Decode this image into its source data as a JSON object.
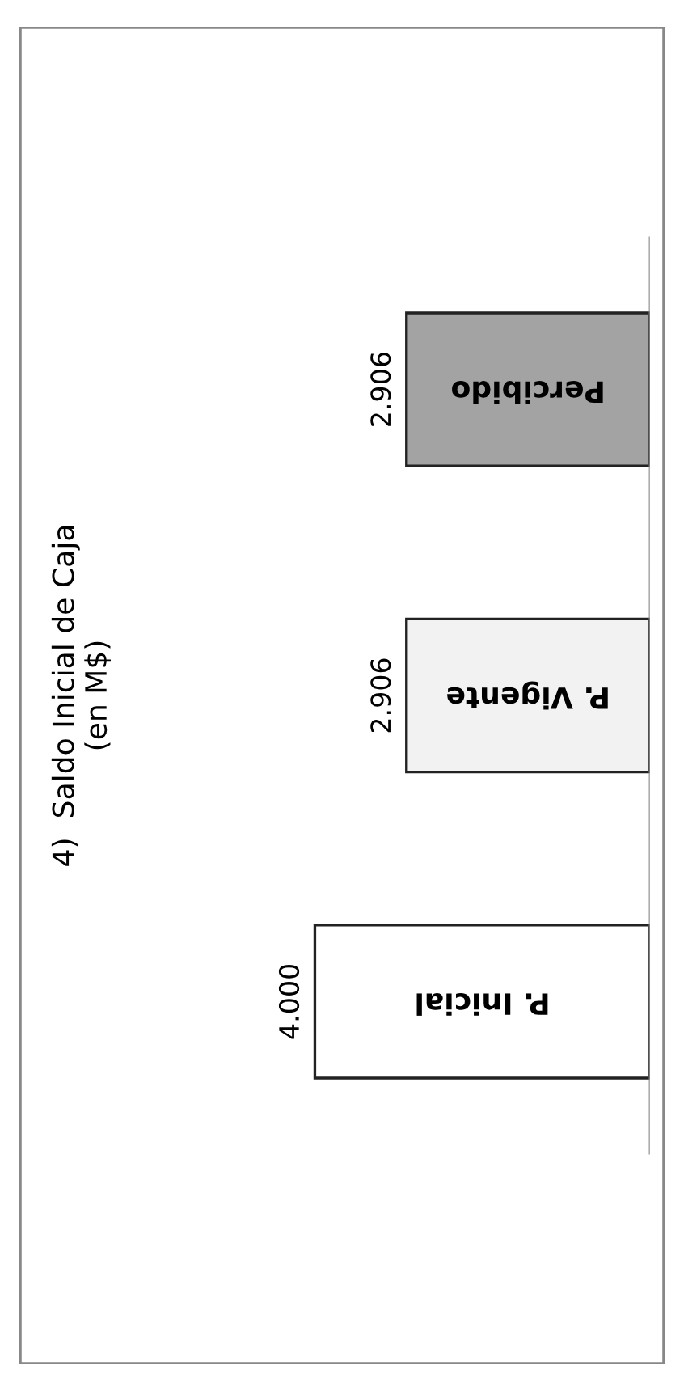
{
  "chart_data": {
    "type": "bar",
    "orientation": "horizontal",
    "title": "4)  Saldo Inicial de Caja\n(en M$)",
    "categories": [
      "Percibido",
      "P. Vigente",
      "P. Inicial"
    ],
    "values": [
      2906,
      2906,
      4000
    ],
    "colors": [
      "#a3a3a3",
      "#f2f2f2",
      "#ffffff"
    ],
    "value_labels": [
      "2.906",
      "2.906",
      "4.000"
    ],
    "legend": false
  }
}
